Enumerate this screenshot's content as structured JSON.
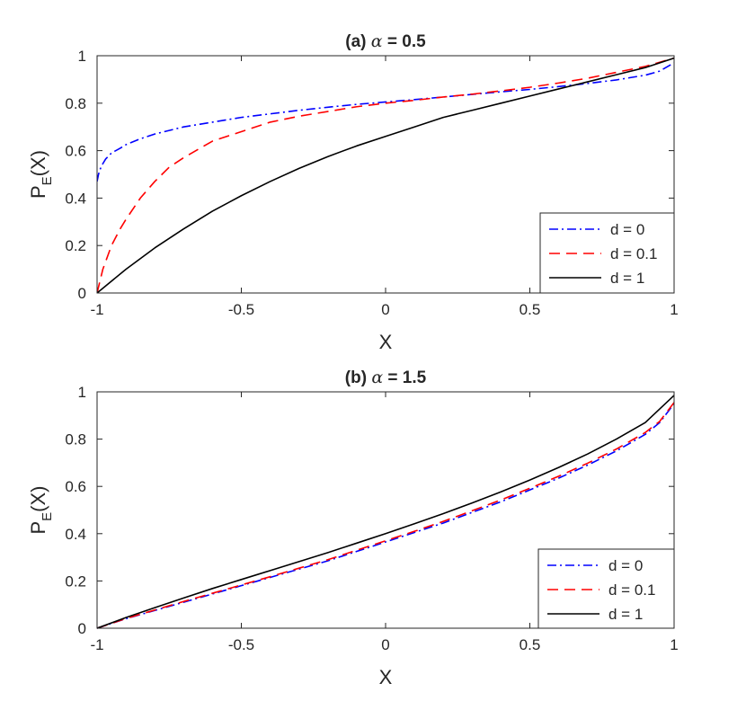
{
  "chart_data": [
    {
      "type": "line",
      "title": {
        "prefix": "(a) ",
        "greek": "α",
        "suffix": " = 0.5"
      },
      "xlabel": "X",
      "ylabel": {
        "main": "P",
        "sub": "E",
        "tail": "(X)"
      },
      "xlim": [
        -1,
        1
      ],
      "ylim": [
        0,
        1
      ],
      "xticks": [
        "-1",
        "-0.5",
        "0",
        "0.5",
        "1"
      ],
      "yticks": [
        "0",
        "0.2",
        "0.4",
        "0.6",
        "0.8",
        "1"
      ],
      "legend_position": "bottom-right",
      "series": [
        {
          "name": "d = 0",
          "color": "#0000ff",
          "style": "dashdot",
          "x": [
            -1,
            -0.995,
            -0.99,
            -0.98,
            -0.97,
            -0.95,
            -0.92,
            -0.9,
            -0.85,
            -0.8,
            -0.7,
            -0.6,
            -0.5,
            -0.4,
            -0.3,
            -0.2,
            -0.1,
            0,
            0.1,
            0.2,
            0.3,
            0.4,
            0.5,
            0.6,
            0.7,
            0.8,
            0.9,
            0.95,
            1.0
          ],
          "y": [
            0.47,
            0.5,
            0.52,
            0.545,
            0.565,
            0.59,
            0.61,
            0.625,
            0.65,
            0.67,
            0.7,
            0.72,
            0.74,
            0.755,
            0.77,
            0.783,
            0.795,
            0.805,
            0.815,
            0.826,
            0.837,
            0.848,
            0.858,
            0.87,
            0.883,
            0.898,
            0.918,
            0.935,
            0.97
          ]
        },
        {
          "name": "d = 0.1",
          "color": "#ff0000",
          "style": "dashed",
          "x": [
            -1,
            -0.98,
            -0.95,
            -0.92,
            -0.9,
            -0.85,
            -0.8,
            -0.75,
            -0.7,
            -0.6,
            -0.5,
            -0.4,
            -0.3,
            -0.2,
            -0.1,
            0,
            0.1,
            0.2,
            0.3,
            0.4,
            0.5,
            0.6,
            0.7,
            0.8,
            0.9,
            1.0
          ],
          "y": [
            0,
            0.1,
            0.2,
            0.27,
            0.31,
            0.4,
            0.47,
            0.53,
            0.57,
            0.64,
            0.68,
            0.72,
            0.745,
            0.765,
            0.785,
            0.8,
            0.812,
            0.826,
            0.838,
            0.852,
            0.867,
            0.885,
            0.905,
            0.93,
            0.955,
            0.99
          ]
        },
        {
          "name": "d = 1",
          "color": "#000000",
          "style": "solid",
          "x": [
            -1,
            -0.9,
            -0.8,
            -0.7,
            -0.6,
            -0.5,
            -0.4,
            -0.3,
            -0.2,
            -0.1,
            0,
            0.1,
            0.2,
            0.3,
            0.4,
            0.5,
            0.6,
            0.7,
            0.8,
            0.9,
            1.0
          ],
          "y": [
            0,
            0.1,
            0.19,
            0.27,
            0.345,
            0.41,
            0.47,
            0.525,
            0.575,
            0.62,
            0.66,
            0.7,
            0.74,
            0.77,
            0.8,
            0.83,
            0.86,
            0.89,
            0.92,
            0.95,
            0.99
          ]
        }
      ]
    },
    {
      "type": "line",
      "title": {
        "prefix": "(b) ",
        "greek": "α",
        "suffix": " = 1.5"
      },
      "xlabel": "X",
      "ylabel": {
        "main": "P",
        "sub": "E",
        "tail": "(X)"
      },
      "xlim": [
        -1,
        1
      ],
      "ylim": [
        0,
        1
      ],
      "xticks": [
        "-1",
        "-0.5",
        "0",
        "0.5",
        "1"
      ],
      "yticks": [
        "0",
        "0.2",
        "0.4",
        "0.6",
        "0.8",
        "1"
      ],
      "legend_position": "bottom-right",
      "series": [
        {
          "name": "d = 0",
          "color": "#0000ff",
          "style": "dashdot",
          "x": [
            -1,
            -0.9,
            -0.8,
            -0.7,
            -0.6,
            -0.5,
            -0.4,
            -0.3,
            -0.2,
            -0.1,
            0,
            0.1,
            0.2,
            0.3,
            0.4,
            0.5,
            0.6,
            0.7,
            0.8,
            0.9,
            0.95,
            1.0
          ],
          "y": [
            0,
            0.04,
            0.075,
            0.11,
            0.145,
            0.18,
            0.215,
            0.25,
            0.285,
            0.325,
            0.365,
            0.405,
            0.445,
            0.49,
            0.535,
            0.585,
            0.635,
            0.69,
            0.75,
            0.82,
            0.87,
            0.95
          ]
        },
        {
          "name": "d = 0.1",
          "color": "#ff0000",
          "style": "dashed",
          "x": [
            -1,
            -0.9,
            -0.8,
            -0.7,
            -0.6,
            -0.5,
            -0.4,
            -0.3,
            -0.2,
            -0.1,
            0,
            0.1,
            0.2,
            0.3,
            0.4,
            0.5,
            0.6,
            0.7,
            0.8,
            0.9,
            0.95,
            1.0
          ],
          "y": [
            0,
            0.041,
            0.077,
            0.113,
            0.148,
            0.183,
            0.218,
            0.254,
            0.29,
            0.33,
            0.37,
            0.41,
            0.452,
            0.497,
            0.543,
            0.592,
            0.643,
            0.698,
            0.758,
            0.828,
            0.875,
            0.955
          ]
        },
        {
          "name": "d = 1",
          "color": "#000000",
          "style": "solid",
          "x": [
            -1,
            -0.9,
            -0.8,
            -0.7,
            -0.6,
            -0.5,
            -0.4,
            -0.3,
            -0.2,
            -0.1,
            0,
            0.1,
            0.2,
            0.3,
            0.4,
            0.5,
            0.6,
            0.7,
            0.8,
            0.9,
            1.0
          ],
          "y": [
            0,
            0.045,
            0.087,
            0.128,
            0.168,
            0.206,
            0.244,
            0.282,
            0.32,
            0.36,
            0.4,
            0.442,
            0.485,
            0.53,
            0.577,
            0.627,
            0.68,
            0.737,
            0.8,
            0.87,
            0.985
          ]
        }
      ]
    }
  ]
}
